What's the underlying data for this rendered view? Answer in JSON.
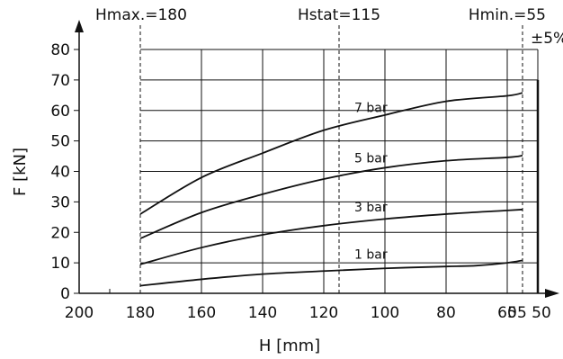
{
  "chart_data": {
    "type": "line",
    "xlabel": "H [mm]",
    "ylabel": "F [kN]",
    "x_reversed": true,
    "xlim": [
      200,
      50
    ],
    "ylim": [
      0,
      80
    ],
    "grid": true,
    "x_ticks": [
      200,
      180,
      160,
      140,
      120,
      100,
      80,
      60,
      55,
      50
    ],
    "y_ticks": [
      0,
      10,
      20,
      30,
      40,
      50,
      60,
      70,
      80
    ],
    "reference_lines": [
      {
        "x": 180,
        "label": "Hmax.=180"
      },
      {
        "x": 115,
        "label": "Hstat=115"
      },
      {
        "x": 55,
        "label": "Hmin.=55"
      }
    ],
    "tolerance_label": "±5%",
    "series": [
      {
        "name": "1 bar",
        "x": [
          180,
          160,
          140,
          120,
          100,
          80,
          70,
          60,
          55
        ],
        "values": [
          2.5,
          4.6,
          6.3,
          7.3,
          8.2,
          8.8,
          9.1,
          10.0,
          10.8
        ]
      },
      {
        "name": "3 bar",
        "x": [
          180,
          160,
          140,
          120,
          100,
          80,
          60,
          55
        ],
        "values": [
          9.5,
          15.0,
          19.2,
          22.2,
          24.4,
          26.0,
          27.2,
          27.5
        ]
      },
      {
        "name": "5 bar",
        "x": [
          180,
          160,
          140,
          120,
          100,
          80,
          60,
          55
        ],
        "values": [
          18.0,
          26.5,
          32.5,
          37.5,
          41.2,
          43.5,
          44.6,
          45.2
        ]
      },
      {
        "name": "7 bar",
        "x": [
          180,
          160,
          140,
          120,
          100,
          80,
          60,
          55
        ],
        "values": [
          26.0,
          38.0,
          46.0,
          53.5,
          58.5,
          63.0,
          64.8,
          65.8
        ]
      }
    ]
  }
}
